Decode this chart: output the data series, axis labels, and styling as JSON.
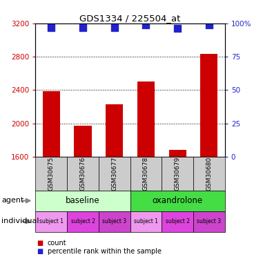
{
  "title": "GDS1334 / 225504_at",
  "samples": [
    "GSM30675",
    "GSM30676",
    "GSM30677",
    "GSM30678",
    "GSM30679",
    "GSM30680"
  ],
  "bar_values": [
    2390,
    1970,
    2230,
    2500,
    1680,
    2830
  ],
  "dot_values": [
    97,
    97,
    97,
    99,
    96,
    99
  ],
  "bar_color": "#cc0000",
  "dot_color": "#2222cc",
  "ylim_left": [
    1600,
    3200
  ],
  "ylim_right": [
    0,
    100
  ],
  "yticks_left": [
    1600,
    2000,
    2400,
    2800,
    3200
  ],
  "yticks_right": [
    0,
    25,
    50,
    75,
    100
  ],
  "gsm_bg_color": "#cccccc",
  "baseline_color": "#ccffcc",
  "oxandrolone_color": "#44dd44",
  "ind_colors": [
    "#ee99ee",
    "#dd44dd",
    "#cc44cc",
    "#ee99ee",
    "#dd44dd",
    "#cc44cc"
  ],
  "individual_labels": [
    "subject 1",
    "subject 2",
    "subject 3",
    "subject 1",
    "subject 2",
    "subject 3"
  ],
  "bar_width": 0.55,
  "dot_size": 45,
  "legend_count_color": "#cc0000",
  "legend_dot_color": "#2222cc"
}
